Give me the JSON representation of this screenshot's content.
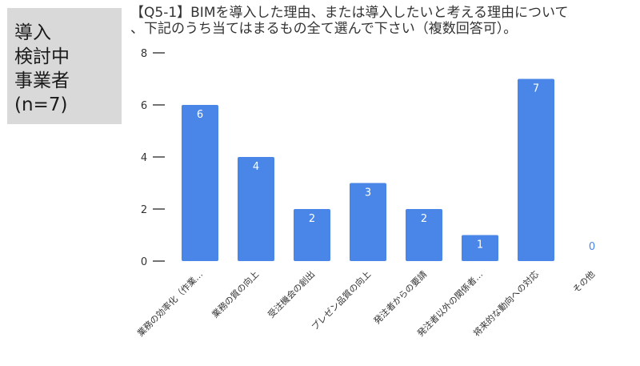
{
  "side_label": {
    "lines": [
      "導入",
      "検討中",
      "事業者",
      "(n=7)"
    ]
  },
  "title": {
    "line1": "【Q5-1】BIMを導入した理由、または導入したいと考える理由について",
    "line2": "、下記のうち当てはまるもの全て選んで下さい（複数回答可）。"
  },
  "chart_data": {
    "type": "bar",
    "title": "【Q5-1】BIMを導入した理由、または導入したいと考える理由について、下記のうち当てはまるもの全て選んで下さい（複数回答可）。",
    "categories": [
      "業務の効率化（作業…",
      "業務の質の向上",
      "受注機会の創出",
      "プレゼン品質の向上",
      "発注者からの要請",
      "発注者以外の関係者…",
      "将来的な動向への対応",
      "その他"
    ],
    "values": [
      6,
      4,
      2,
      3,
      2,
      1,
      7,
      0
    ],
    "data_labels": [
      "6",
      "4",
      "2",
      "3",
      "2",
      "1",
      "7",
      "0"
    ],
    "y_ticks": [
      "0",
      "2",
      "4",
      "6",
      "8"
    ],
    "ylim": [
      0,
      8
    ],
    "xlabel": "",
    "ylabel": "",
    "grid": false,
    "legend": "none",
    "colors": {
      "bar": "#4a86e8",
      "label_inside": "#ffffff",
      "label_outside": "#4a86e8",
      "axis_text": "#333333",
      "tick_mark": "#444444"
    }
  }
}
